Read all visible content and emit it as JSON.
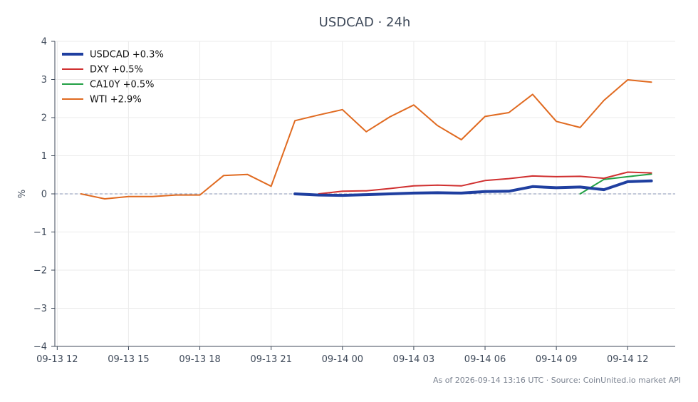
{
  "chart_data": {
    "type": "line",
    "title": "USDCAD · 24h",
    "ylabel": "%",
    "xlabel": "",
    "ylim": [
      -4,
      4
    ],
    "yticks": [
      -4,
      -3,
      -2,
      -1,
      0,
      1,
      2,
      3,
      4
    ],
    "ytick_labels": [
      "−4",
      "−3",
      "−2",
      "−1",
      "0",
      "1",
      "2",
      "3",
      "4"
    ],
    "xlim": [
      -0.1,
      26
    ],
    "xticks": [
      0,
      3,
      6,
      9,
      12,
      15,
      18,
      21,
      24
    ],
    "xtick_labels": [
      "09-13 12",
      "09-13 15",
      "09-13 18",
      "09-13 21",
      "09-14 00",
      "09-14 03",
      "09-14 06",
      "09-14 09",
      "09-14 12"
    ],
    "grid": true,
    "zero_line": true,
    "legend_position": "top-left",
    "series": [
      {
        "name": "USDCAD +0.3%",
        "color": "#1f3fa0",
        "x": [
          10,
          11,
          12,
          13,
          14,
          15,
          16,
          17,
          18,
          19,
          20,
          21,
          22,
          23,
          24,
          25
        ],
        "y": [
          0.0,
          -0.03,
          -0.04,
          -0.02,
          0.0,
          0.02,
          0.03,
          0.02,
          0.06,
          0.07,
          0.19,
          0.16,
          0.18,
          0.11,
          0.32,
          0.34
        ]
      },
      {
        "name": "DXY +0.5%",
        "color": "#d03030",
        "x": [
          11,
          12,
          13,
          14,
          15,
          16,
          17,
          18,
          19,
          20,
          21,
          22,
          23,
          24,
          25
        ],
        "y": [
          0.0,
          0.07,
          0.08,
          0.14,
          0.21,
          0.23,
          0.21,
          0.35,
          0.4,
          0.47,
          0.45,
          0.46,
          0.41,
          0.57,
          0.55
        ]
      },
      {
        "name": "CA10Y +0.5%",
        "color": "#22a045",
        "x": [
          22,
          23,
          24,
          25
        ],
        "y": [
          0.0,
          0.38,
          0.45,
          0.52
        ]
      },
      {
        "name": "WTI +2.9%",
        "color": "#e06a20",
        "x": [
          1,
          2,
          3,
          4,
          5,
          6,
          7,
          8,
          9,
          10,
          11,
          12,
          13,
          14,
          15,
          16,
          17,
          18,
          19,
          20,
          21,
          22,
          23,
          24,
          25
        ],
        "y": [
          0.0,
          -0.13,
          -0.07,
          -0.07,
          -0.03,
          -0.03,
          0.48,
          0.51,
          0.2,
          1.92,
          2.07,
          2.21,
          1.63,
          2.02,
          2.33,
          1.79,
          1.42,
          2.03,
          2.13,
          2.61,
          1.9,
          1.74,
          2.45,
          2.99,
          2.93
        ]
      }
    ]
  },
  "footer": "As of 2026-09-14 13:16 UTC · Source: CoinUnited.io market API"
}
